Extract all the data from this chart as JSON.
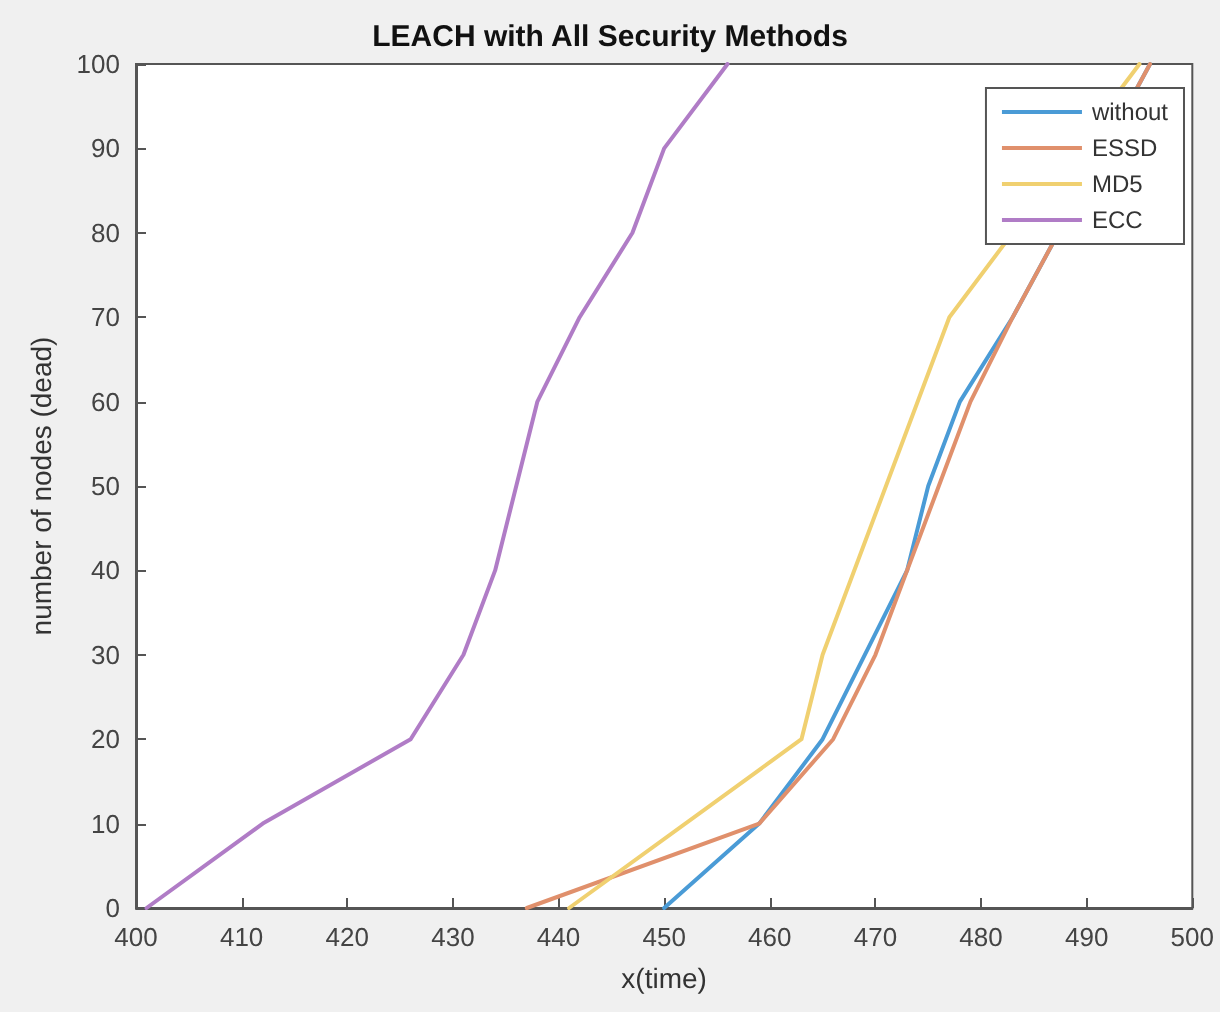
{
  "chart_data": {
    "type": "line",
    "title": "LEACH with All Security Methods",
    "xlabel": "x(time)",
    "ylabel": "number of nodes (dead)",
    "xlim": [
      400,
      500
    ],
    "xticks": [
      400,
      410,
      420,
      430,
      440,
      450,
      460,
      470,
      480,
      490,
      500
    ],
    "ylim": [
      0,
      100
    ],
    "yticks": [
      0,
      10,
      20,
      30,
      40,
      50,
      60,
      70,
      80,
      90,
      100
    ],
    "grid": false,
    "legend": "top right",
    "marker": "none",
    "line_style": "solid",
    "series": [
      {
        "name": "without",
        "color": "#4a9bd6",
        "x": [
          450,
          459,
          465,
          473,
          475,
          478,
          483,
          496
        ],
        "values": [
          0,
          10,
          20,
          40,
          50,
          60,
          70,
          100
        ]
      },
      {
        "name": "ESSD",
        "color": "#e0906c",
        "x": [
          437,
          459,
          466,
          470,
          476,
          479,
          483,
          496
        ],
        "values": [
          0,
          10,
          20,
          30,
          50,
          60,
          70,
          100
        ]
      },
      {
        "name": "MD5",
        "color": "#f0d070",
        "x": [
          441,
          463,
          465,
          477,
          495
        ],
        "values": [
          0,
          20,
          30,
          70,
          100
        ]
      },
      {
        "name": "ECC",
        "color": "#b07cc6",
        "x": [
          401,
          412,
          426,
          431,
          434,
          438,
          442,
          447,
          450,
          456
        ],
        "values": [
          0,
          10,
          20,
          30,
          40,
          60,
          70,
          80,
          90,
          100
        ]
      }
    ]
  }
}
